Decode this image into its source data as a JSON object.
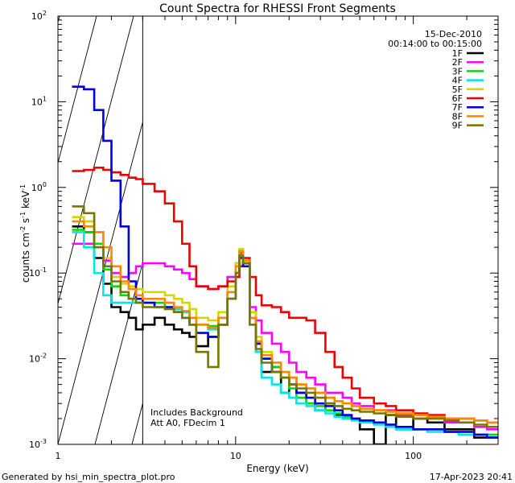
{
  "chart_data": {
    "type": "line",
    "title": "Count Spectra for RHESSI Front Segments",
    "xlabel": "Energy (keV)",
    "ylabel_parts": {
      "a": "counts cm",
      "exp1": "-2",
      "b": " s",
      "exp2": "-1",
      "c": " keV",
      "exp3": "-1"
    },
    "xscale": "log",
    "yscale": "log",
    "xlim": [
      1,
      300
    ],
    "ylim": [
      0.001,
      100
    ],
    "x_ticks": [
      {
        "value": 1,
        "label": "1"
      },
      {
        "value": 10,
        "label": "10"
      },
      {
        "value": 100,
        "label": "100"
      }
    ],
    "y_ticks": [
      {
        "value": 0.001,
        "base": "10",
        "exp": "-3"
      },
      {
        "value": 0.01,
        "base": "10",
        "exp": "-2"
      },
      {
        "value": 0.1,
        "base": "10",
        "exp": "-1"
      },
      {
        "value": 1,
        "base": "10",
        "exp": "0"
      },
      {
        "value": 10,
        "base": "10",
        "exp": "1"
      },
      {
        "value": 100,
        "base": "10",
        "exp": "2"
      }
    ],
    "date": "15-Dec-2010",
    "time_range": "00:14:00 to 00:15:00",
    "hatched_region": {
      "x_min": 1,
      "x_max": 3
    },
    "annotations": [
      "Includes Background",
      "Att A0, FDecim 1"
    ],
    "series": [
      {
        "name": "1F",
        "color": "#000000",
        "values": [
          0.35,
          0.3,
          0.15,
          0.075,
          0.04,
          0.035,
          0.03,
          0.022,
          0.025,
          0.03,
          0.025,
          0.022,
          0.02,
          0.018,
          0.014,
          0.018,
          0.025,
          0.05,
          0.1,
          0.17,
          0.13,
          0.03,
          0.012,
          0.007,
          0.008,
          0.004,
          0.006,
          0.004,
          0.003,
          0.0025,
          0.003,
          0.0022,
          0.002,
          0.002,
          0.0015,
          0.001,
          0.0022,
          0.0015,
          0.002,
          0.0018,
          0.0015,
          0.0015,
          0.0012,
          0.0012
        ]
      },
      {
        "name": "2F",
        "color": "#ff00ff",
        "values": [
          0.22,
          0.22,
          0.2,
          0.14,
          0.1,
          0.09,
          0.1,
          0.12,
          0.13,
          0.13,
          0.12,
          0.11,
          0.1,
          0.085,
          0.07,
          0.065,
          0.07,
          0.09,
          0.13,
          0.17,
          0.14,
          0.04,
          0.028,
          0.02,
          0.015,
          0.012,
          0.009,
          0.007,
          0.006,
          0.005,
          0.004,
          0.004,
          0.0035,
          0.003,
          0.0028,
          0.0025,
          0.0025,
          0.0022,
          0.002,
          0.002,
          0.0018,
          0.0018,
          0.0016,
          0.0015
        ]
      },
      {
        "name": "3F",
        "color": "#00dd00",
        "values": [
          0.32,
          0.3,
          0.22,
          0.11,
          0.07,
          0.055,
          0.05,
          0.045,
          0.045,
          0.045,
          0.04,
          0.038,
          0.035,
          0.03,
          0.025,
          0.024,
          0.03,
          0.06,
          0.12,
          0.18,
          0.14,
          0.03,
          0.015,
          0.01,
          0.008,
          0.006,
          0.0045,
          0.0035,
          0.003,
          0.0028,
          0.0025,
          0.0023,
          0.0021,
          0.002,
          0.0019,
          0.0018,
          0.0017,
          0.0016,
          0.0015,
          0.0015,
          0.0014,
          0.0014,
          0.0013,
          0.0013
        ]
      },
      {
        "name": "4F",
        "color": "#00e5e5",
        "values": [
          0.3,
          0.2,
          0.1,
          0.055,
          0.045,
          0.045,
          0.045,
          0.045,
          0.045,
          0.04,
          0.04,
          0.038,
          0.035,
          0.03,
          0.025,
          0.022,
          0.03,
          0.06,
          0.12,
          0.19,
          0.14,
          0.025,
          0.012,
          0.006,
          0.005,
          0.004,
          0.0035,
          0.003,
          0.0028,
          0.0025,
          0.0023,
          0.0021,
          0.002,
          0.0019,
          0.0018,
          0.0017,
          0.0016,
          0.0015,
          0.0015,
          0.0014,
          0.0014,
          0.0013,
          0.0013,
          0.0012
        ]
      },
      {
        "name": "5F",
        "color": "#d5d500",
        "values": [
          0.45,
          0.4,
          0.3,
          0.15,
          0.09,
          0.075,
          0.07,
          0.065,
          0.06,
          0.06,
          0.055,
          0.05,
          0.045,
          0.038,
          0.03,
          0.028,
          0.035,
          0.07,
          0.13,
          0.19,
          0.15,
          0.035,
          0.018,
          0.012,
          0.009,
          0.007,
          0.006,
          0.005,
          0.0045,
          0.004,
          0.0035,
          0.0032,
          0.003,
          0.0028,
          0.0026,
          0.0025,
          0.0024,
          0.0023,
          0.0022,
          0.0021,
          0.002,
          0.002,
          0.0019,
          0.0018
        ]
      },
      {
        "name": "6F",
        "color": "#ee0000",
        "values": [
          1.55,
          1.6,
          1.7,
          1.6,
          1.5,
          1.4,
          1.3,
          1.25,
          1.1,
          0.9,
          0.65,
          0.4,
          0.22,
          0.12,
          0.07,
          0.065,
          0.07,
          0.08,
          0.09,
          0.12,
          0.15,
          0.09,
          0.055,
          0.042,
          0.04,
          0.035,
          0.03,
          0.03,
          0.028,
          0.02,
          0.012,
          0.008,
          0.006,
          0.0045,
          0.0035,
          0.003,
          0.0028,
          0.0025,
          0.0023,
          0.0022,
          0.002,
          0.002,
          0.0019,
          0.0018
        ]
      },
      {
        "name": "7F",
        "color": "#0000dd",
        "values": [
          15,
          14,
          8,
          3.5,
          1.2,
          0.35,
          0.08,
          0.05,
          0.045,
          0.04,
          0.04,
          0.035,
          0.03,
          0.025,
          0.02,
          0.018,
          0.025,
          0.05,
          0.1,
          0.15,
          0.12,
          0.03,
          0.015,
          0.01,
          0.007,
          0.006,
          0.005,
          0.004,
          0.0035,
          0.003,
          0.0028,
          0.0025,
          0.0022,
          0.002,
          0.0019,
          0.0018,
          0.0017,
          0.0016,
          0.0015,
          0.0015,
          0.0014,
          0.0014,
          0.0013,
          0.0012
        ]
      },
      {
        "name": "8F",
        "color": "#ff8800",
        "values": [
          0.4,
          0.35,
          0.3,
          0.2,
          0.12,
          0.08,
          0.065,
          0.055,
          0.05,
          0.05,
          0.045,
          0.04,
          0.036,
          0.03,
          0.025,
          0.023,
          0.03,
          0.06,
          0.12,
          0.18,
          0.14,
          0.03,
          0.016,
          0.011,
          0.009,
          0.007,
          0.006,
          0.005,
          0.0045,
          0.004,
          0.0035,
          0.0032,
          0.003,
          0.0028,
          0.0026,
          0.0025,
          0.0024,
          0.0023,
          0.0022,
          0.0021,
          0.002,
          0.002,
          0.0019,
          0.0018
        ]
      },
      {
        "name": "9F",
        "color": "#777700",
        "values": [
          0.6,
          0.5,
          0.2,
          0.12,
          0.08,
          0.06,
          0.05,
          0.045,
          0.04,
          0.04,
          0.038,
          0.035,
          0.03,
          0.025,
          0.012,
          0.008,
          0.025,
          0.05,
          0.1,
          0.16,
          0.13,
          0.025,
          0.013,
          0.009,
          0.007,
          0.006,
          0.005,
          0.0045,
          0.004,
          0.0035,
          0.003,
          0.0028,
          0.0026,
          0.0025,
          0.0024,
          0.0023,
          0.0022,
          0.0021,
          0.002,
          0.002,
          0.0019,
          0.0018,
          0.0017,
          0.0016
        ]
      }
    ],
    "bin_edges": [
      1.2,
      1.4,
      1.6,
      1.8,
      2.0,
      2.25,
      2.5,
      2.75,
      3.0,
      3.5,
      4.0,
      4.5,
      5.0,
      5.5,
      6.0,
      7.0,
      8.0,
      9.0,
      10.0,
      10.5,
      11.0,
      12.0,
      13.0,
      14.0,
      16.0,
      18.0,
      20.0,
      22.0,
      25.0,
      28.0,
      32.0,
      36.0,
      40.0,
      45.0,
      50.0,
      60.0,
      70.0,
      80.0,
      100.0,
      120.0,
      150.0,
      180.0,
      220.0,
      260.0,
      300.0
    ]
  },
  "footer": {
    "generated_by": "Generated by hsi_min_spectra_plot.pro",
    "timestamp": "17-Apr-2023 20:41"
  }
}
